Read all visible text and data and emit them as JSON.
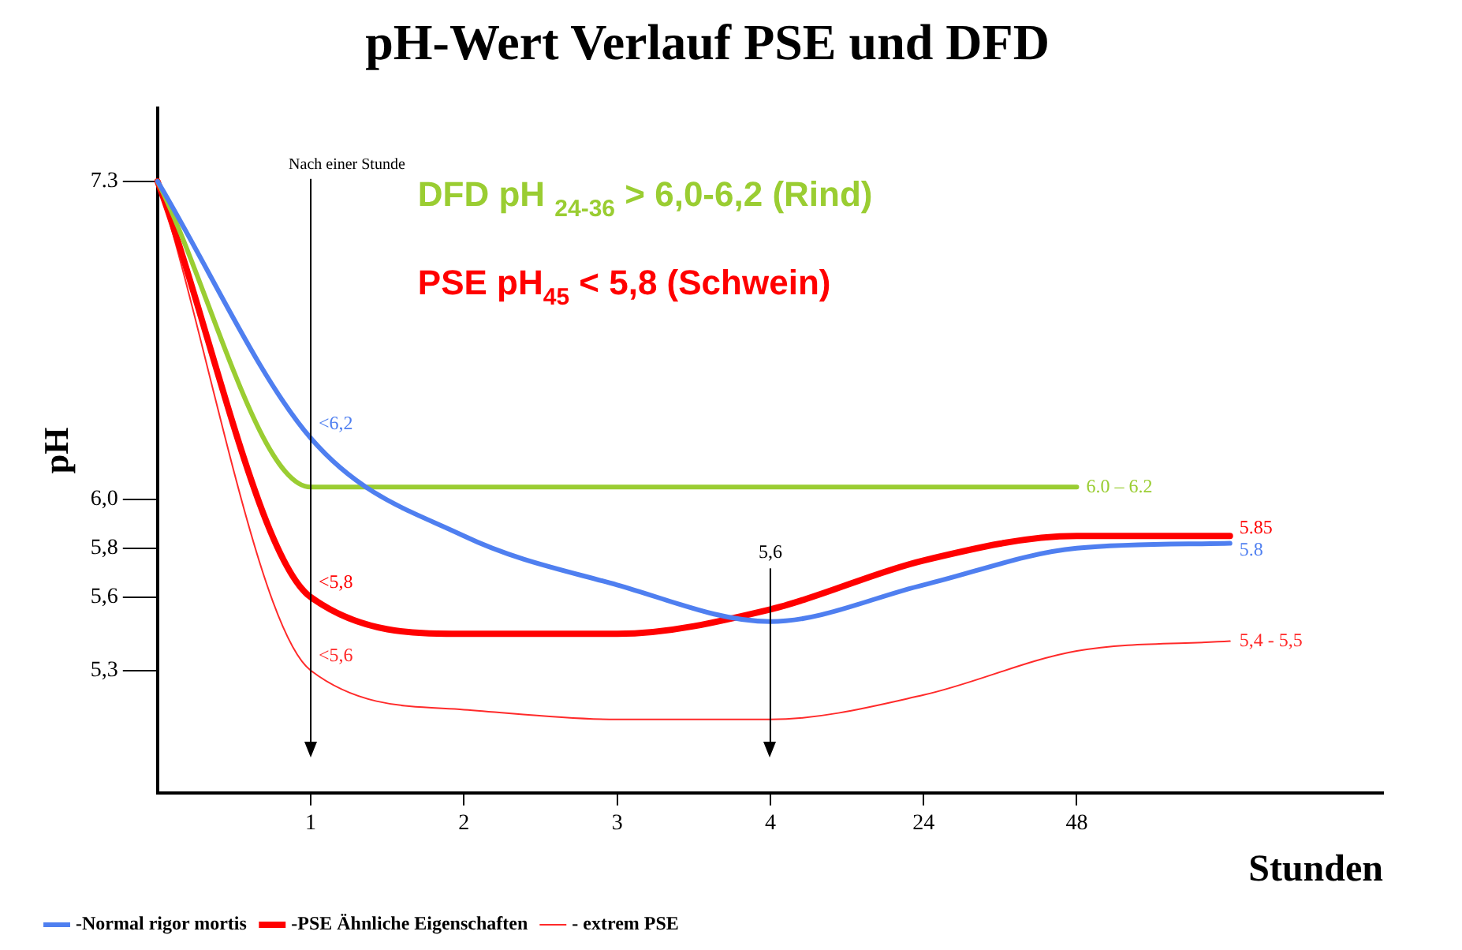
{
  "chart_data": {
    "type": "line",
    "title": "pH-Wert Verlauf PSE und DFD",
    "xlabel": "Stunden",
    "ylabel": "pH",
    "categories": [
      null,
      "1",
      "2",
      "3",
      "4",
      "24",
      "48",
      null,
      null
    ],
    "series": [
      {
        "name": "-Normal rigor mortis",
        "color": "#4f7ff0",
        "values": [
          7.3,
          6.25,
          5.85,
          5.65,
          5.5,
          5.65,
          5.8,
          5.82,
          null
        ],
        "value_labels": [
          null,
          "<6,2",
          null,
          null,
          null,
          null,
          null,
          "5.8",
          null
        ]
      },
      {
        "color": "#9acd32",
        "values": [
          7.3,
          6.05,
          6.05,
          6.05,
          6.05,
          6.05,
          6.05,
          null,
          null
        ],
        "value_labels": [
          null,
          null,
          null,
          null,
          null,
          null,
          "6.0 – 6.2",
          null,
          null
        ]
      },
      {
        "name": "-PSE Ähnliche Eigenschaften",
        "color": "#ff0000",
        "values": [
          7.3,
          5.6,
          5.45,
          5.45,
          5.55,
          5.75,
          5.85,
          5.85,
          null
        ],
        "value_labels": [
          null,
          "<5,8",
          null,
          null,
          null,
          null,
          null,
          "5.85",
          null
        ]
      },
      {
        "name": "- extrem PSE",
        "color": "#ff2a2a",
        "values": [
          7.3,
          5.3,
          5.14,
          5.1,
          5.1,
          5.2,
          5.38,
          5.42,
          null
        ],
        "value_labels": [
          null,
          "<5,6",
          null,
          null,
          null,
          null,
          null,
          "5,4 - 5,5",
          null
        ]
      }
    ],
    "ylim": [
      4.8,
      7.6
    ],
    "yticks": [
      {
        "value": 5.3,
        "label": "5,3"
      },
      {
        "value": 5.6,
        "label": "5,6"
      },
      {
        "value": 5.8,
        "label": "5,8"
      },
      {
        "value": 6.0,
        "label": "6,0"
      },
      7.3
    ],
    "ref_lines": [
      {
        "axis": "x",
        "value": "1",
        "label": "Nach einer Stunde",
        "color": "#000000"
      },
      {
        "axis": "x",
        "value": "4",
        "color": "#000000"
      }
    ],
    "annotations": [
      "DFD pH $_{24-36}$ > 6,0-6,2 (Rind)",
      "PSE pH$_{45}$ < 5,8 (Schwein)",
      {
        "text": "5,6",
        "x": "4",
        "y": 5.55
      }
    ],
    "legend": "bottom left",
    "grid": false,
    "marker": "none",
    "line_style": "solid"
  }
}
